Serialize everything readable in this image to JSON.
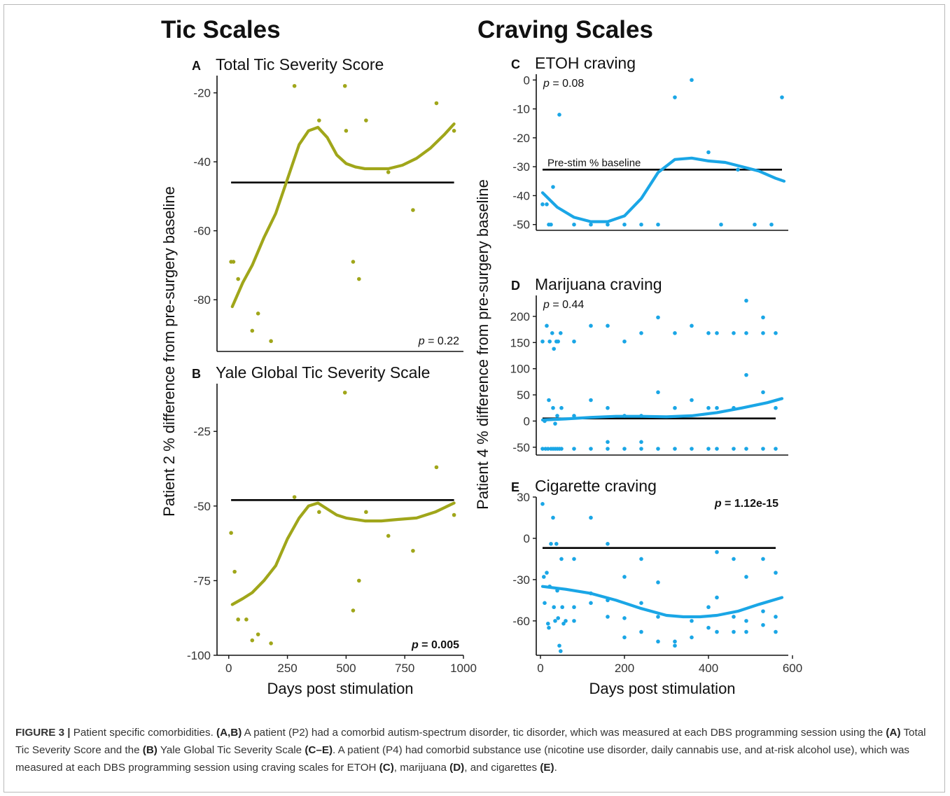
{
  "figure": {
    "group_left": "Tic Scales",
    "group_right": "Craving Scales",
    "ylabel_left": "Patient 2 % difference from pre-surgery baseline",
    "ylabel_right": "Patient 4 % difference from pre-surgery baseline",
    "xlabel_left": "Days post stimulation",
    "xlabel_right": "Days post stimulation",
    "colors": {
      "tic": "#a0a61a",
      "craving": "#1aa6e6",
      "baseline": "#000000"
    }
  },
  "caption": {
    "label": "FIGURE 3 |",
    "t1": " Patient specific comorbidities. ",
    "b1": "(A,B)",
    "t2": " A patient (P2) had a comorbid autism-spectrum disorder, tic disorder, which was measured at each DBS programming session using the ",
    "b2": "(A)",
    "t3": " Total Tic Severity Score and the ",
    "b3": "(B)",
    "t4": " Yale Global Tic Severity Scale ",
    "b4": "(C–E)",
    "t5": ". A patient (P4) had comorbid substance use (nicotine use disorder, daily cannabis use, and at-risk alcohol use), which was measured at each DBS programming session using craving scales for ETOH ",
    "b5": "(C)",
    "t6": ", marijuana ",
    "b6": "(D)",
    "t7": ", and cigarettes ",
    "b7": "(E)",
    "t8": "."
  },
  "chart_data": [
    {
      "id": "A",
      "type": "scatter",
      "panel_letter": "A",
      "title": "Total Tic Severity Score",
      "xlim": [
        -50,
        1000
      ],
      "ylim": [
        -95,
        -15
      ],
      "yticks": [
        -20,
        -40,
        -60,
        -80
      ],
      "xticks": [],
      "p_label": "p",
      "p_value": " = 0.22",
      "p_bold": false,
      "p_pos": "bottom-right",
      "baseline": -46,
      "points": [
        [
          10,
          -69
        ],
        [
          20,
          -69
        ],
        [
          40,
          -74
        ],
        [
          100,
          -89
        ],
        [
          125,
          -84
        ],
        [
          180,
          -92
        ],
        [
          280,
          -18
        ],
        [
          385,
          -28
        ],
        [
          495,
          -18
        ],
        [
          500,
          -31
        ],
        [
          530,
          -69
        ],
        [
          555,
          -74
        ],
        [
          585,
          -28
        ],
        [
          680,
          -43
        ],
        [
          785,
          -54
        ],
        [
          885,
          -23
        ],
        [
          960,
          -31
        ]
      ],
      "smooth": [
        [
          15,
          -82
        ],
        [
          60,
          -75
        ],
        [
          100,
          -70
        ],
        [
          150,
          -62
        ],
        [
          200,
          -55
        ],
        [
          250,
          -45
        ],
        [
          300,
          -35
        ],
        [
          340,
          -31
        ],
        [
          380,
          -30
        ],
        [
          420,
          -33
        ],
        [
          460,
          -38
        ],
        [
          500,
          -40.5
        ],
        [
          540,
          -41.5
        ],
        [
          580,
          -42
        ],
        [
          620,
          -42
        ],
        [
          680,
          -42
        ],
        [
          740,
          -41
        ],
        [
          800,
          -39
        ],
        [
          860,
          -36
        ],
        [
          920,
          -32
        ],
        [
          960,
          -29
        ]
      ]
    },
    {
      "id": "B",
      "type": "scatter",
      "panel_letter": "B",
      "title": "Yale Global Tic Severity Scale",
      "xlim": [
        -50,
        1000
      ],
      "ylim": [
        -100,
        -9
      ],
      "yticks": [
        -25,
        -50,
        -75,
        -100
      ],
      "xticks": [
        0,
        250,
        500,
        750,
        1000
      ],
      "p_label": "p",
      "p_value": " = 0.005",
      "p_bold": true,
      "p_pos": "bottom-right",
      "baseline": -48,
      "points": [
        [
          10,
          -59
        ],
        [
          25,
          -72
        ],
        [
          40,
          -88
        ],
        [
          75,
          -88
        ],
        [
          100,
          -95
        ],
        [
          125,
          -93
        ],
        [
          180,
          -96
        ],
        [
          280,
          -47
        ],
        [
          385,
          -52
        ],
        [
          495,
          -12
        ],
        [
          530,
          -85
        ],
        [
          555,
          -75
        ],
        [
          585,
          -52
        ],
        [
          680,
          -60
        ],
        [
          785,
          -65
        ],
        [
          885,
          -37
        ],
        [
          960,
          -53
        ]
      ],
      "smooth": [
        [
          15,
          -83
        ],
        [
          60,
          -81
        ],
        [
          100,
          -79
        ],
        [
          150,
          -75
        ],
        [
          200,
          -70
        ],
        [
          250,
          -61
        ],
        [
          300,
          -54
        ],
        [
          340,
          -50
        ],
        [
          380,
          -49
        ],
        [
          420,
          -51
        ],
        [
          460,
          -53
        ],
        [
          500,
          -54
        ],
        [
          540,
          -54.5
        ],
        [
          580,
          -55
        ],
        [
          650,
          -55
        ],
        [
          720,
          -54.5
        ],
        [
          800,
          -54
        ],
        [
          880,
          -52
        ],
        [
          960,
          -49
        ]
      ]
    },
    {
      "id": "C",
      "type": "scatter",
      "panel_letter": "C",
      "title": "ETOH craving",
      "xlim": [
        -10,
        590
      ],
      "ylim": [
        -52,
        2
      ],
      "yticks": [
        0,
        -10,
        -20,
        -30,
        -40,
        -50
      ],
      "xticks": [],
      "p_label": "p",
      "p_value": " = 0.08",
      "p_bold": false,
      "p_pos": "top-left",
      "baseline": -31,
      "baseline_label": "Pre-stim % baseline",
      "points": [
        [
          5,
          -43
        ],
        [
          15,
          -43
        ],
        [
          20,
          -50
        ],
        [
          25,
          -50
        ],
        [
          30,
          -37
        ],
        [
          45,
          -12
        ],
        [
          80,
          -50
        ],
        [
          120,
          -50
        ],
        [
          160,
          -50
        ],
        [
          200,
          -50
        ],
        [
          240,
          -50
        ],
        [
          280,
          -50
        ],
        [
          320,
          -6
        ],
        [
          360,
          0
        ],
        [
          400,
          -25
        ],
        [
          430,
          -50
        ],
        [
          470,
          -31
        ],
        [
          510,
          -50
        ],
        [
          550,
          -50
        ],
        [
          575,
          -6
        ]
      ],
      "smooth": [
        [
          5,
          -39
        ],
        [
          40,
          -44
        ],
        [
          80,
          -47.5
        ],
        [
          120,
          -49
        ],
        [
          160,
          -49
        ],
        [
          200,
          -47
        ],
        [
          240,
          -41
        ],
        [
          280,
          -32
        ],
        [
          320,
          -27.5
        ],
        [
          360,
          -27
        ],
        [
          400,
          -28
        ],
        [
          440,
          -28.5
        ],
        [
          480,
          -30
        ],
        [
          520,
          -31.5
        ],
        [
          560,
          -34
        ],
        [
          580,
          -35
        ]
      ]
    },
    {
      "id": "D",
      "type": "scatter",
      "panel_letter": "D",
      "title": "Marijuana craving",
      "xlim": [
        -10,
        590
      ],
      "ylim": [
        -65,
        240
      ],
      "yticks": [
        200,
        150,
        100,
        50,
        0,
        -50
      ],
      "xticks": [],
      "p_label": "p",
      "p_value": " = 0.44",
      "p_bold": false,
      "p_pos": "top-left",
      "baseline": 5,
      "points": [
        [
          5,
          152
        ],
        [
          10,
          0
        ],
        [
          15,
          182
        ],
        [
          20,
          40
        ],
        [
          22,
          152
        ],
        [
          28,
          168
        ],
        [
          30,
          25
        ],
        [
          32,
          138
        ],
        [
          35,
          -5
        ],
        [
          38,
          152
        ],
        [
          40,
          10
        ],
        [
          42,
          152
        ],
        [
          48,
          168
        ],
        [
          50,
          25
        ],
        [
          5,
          -53
        ],
        [
          12,
          -53
        ],
        [
          18,
          -53
        ],
        [
          25,
          -53
        ],
        [
          30,
          -53
        ],
        [
          35,
          -53
        ],
        [
          40,
          -53
        ],
        [
          45,
          -53
        ],
        [
          50,
          -53
        ],
        [
          80,
          152
        ],
        [
          80,
          10
        ],
        [
          80,
          -53
        ],
        [
          120,
          182
        ],
        [
          120,
          40
        ],
        [
          120,
          -53
        ],
        [
          160,
          182
        ],
        [
          160,
          25
        ],
        [
          160,
          -40
        ],
        [
          160,
          -53
        ],
        [
          200,
          152
        ],
        [
          200,
          10
        ],
        [
          200,
          -53
        ],
        [
          240,
          168
        ],
        [
          240,
          10
        ],
        [
          240,
          -40
        ],
        [
          240,
          -53
        ],
        [
          280,
          198
        ],
        [
          280,
          55
        ],
        [
          280,
          -53
        ],
        [
          320,
          168
        ],
        [
          320,
          25
        ],
        [
          320,
          -53
        ],
        [
          360,
          182
        ],
        [
          360,
          40
        ],
        [
          360,
          -53
        ],
        [
          400,
          168
        ],
        [
          400,
          25
        ],
        [
          400,
          -53
        ],
        [
          420,
          168
        ],
        [
          420,
          25
        ],
        [
          420,
          -53
        ],
        [
          460,
          168
        ],
        [
          460,
          25
        ],
        [
          460,
          -53
        ],
        [
          490,
          230
        ],
        [
          490,
          168
        ],
        [
          490,
          88
        ],
        [
          490,
          -53
        ],
        [
          530,
          198
        ],
        [
          530,
          168
        ],
        [
          530,
          55
        ],
        [
          530,
          -53
        ],
        [
          560,
          168
        ],
        [
          560,
          25
        ],
        [
          560,
          -53
        ]
      ],
      "smooth": [
        [
          5,
          2
        ],
        [
          60,
          4
        ],
        [
          120,
          7
        ],
        [
          180,
          9
        ],
        [
          240,
          9
        ],
        [
          300,
          8
        ],
        [
          360,
          10
        ],
        [
          420,
          16
        ],
        [
          480,
          25
        ],
        [
          540,
          35
        ],
        [
          575,
          43
        ]
      ]
    },
    {
      "id": "E",
      "type": "scatter",
      "panel_letter": "E",
      "title": "Cigarette craving",
      "xlim": [
        -10,
        590
      ],
      "ylim": [
        -85,
        30
      ],
      "yticks": [
        30,
        0,
        -30,
        -60
      ],
      "xticks": [
        0,
        200,
        400,
        600
      ],
      "p_label": "p",
      "p_value": " = 1.12e-15",
      "p_bold": true,
      "p_pos": "top-right",
      "baseline": -7,
      "points": [
        [
          5,
          25
        ],
        [
          8,
          -28
        ],
        [
          10,
          -47
        ],
        [
          15,
          -25
        ],
        [
          18,
          -62
        ],
        [
          20,
          -65
        ],
        [
          22,
          -35
        ],
        [
          25,
          -4
        ],
        [
          30,
          15
        ],
        [
          32,
          -50
        ],
        [
          35,
          -60
        ],
        [
          38,
          -4
        ],
        [
          40,
          -38
        ],
        [
          42,
          -58
        ],
        [
          45,
          -78
        ],
        [
          48,
          -82
        ],
        [
          50,
          -15
        ],
        [
          52,
          -50
        ],
        [
          55,
          -62
        ],
        [
          60,
          -60
        ],
        [
          80,
          -15
        ],
        [
          80,
          -50
        ],
        [
          80,
          -60
        ],
        [
          120,
          15
        ],
        [
          120,
          -40
        ],
        [
          120,
          -47
        ],
        [
          160,
          -4
        ],
        [
          160,
          -45
        ],
        [
          160,
          -57
        ],
        [
          200,
          -28
        ],
        [
          200,
          -58
        ],
        [
          200,
          -72
        ],
        [
          240,
          -15
        ],
        [
          240,
          -47
        ],
        [
          240,
          -68
        ],
        [
          280,
          -32
        ],
        [
          280,
          -57
        ],
        [
          280,
          -75
        ],
        [
          320,
          -75
        ],
        [
          320,
          -78
        ],
        [
          360,
          -60
        ],
        [
          360,
          -72
        ],
        [
          400,
          -50
        ],
        [
          400,
          -65
        ],
        [
          420,
          -10
        ],
        [
          420,
          -43
        ],
        [
          420,
          -68
        ],
        [
          460,
          -15
        ],
        [
          460,
          -57
        ],
        [
          460,
          -68
        ],
        [
          490,
          -28
        ],
        [
          490,
          -60
        ],
        [
          490,
          -68
        ],
        [
          530,
          -15
        ],
        [
          530,
          -53
        ],
        [
          530,
          -63
        ],
        [
          560,
          -25
        ],
        [
          560,
          -57
        ],
        [
          560,
          -68
        ]
      ],
      "smooth": [
        [
          5,
          -35
        ],
        [
          60,
          -37
        ],
        [
          120,
          -40
        ],
        [
          180,
          -45
        ],
        [
          240,
          -51
        ],
        [
          300,
          -56
        ],
        [
          340,
          -57
        ],
        [
          380,
          -57
        ],
        [
          420,
          -56
        ],
        [
          470,
          -53
        ],
        [
          520,
          -48
        ],
        [
          575,
          -43
        ]
      ]
    }
  ]
}
